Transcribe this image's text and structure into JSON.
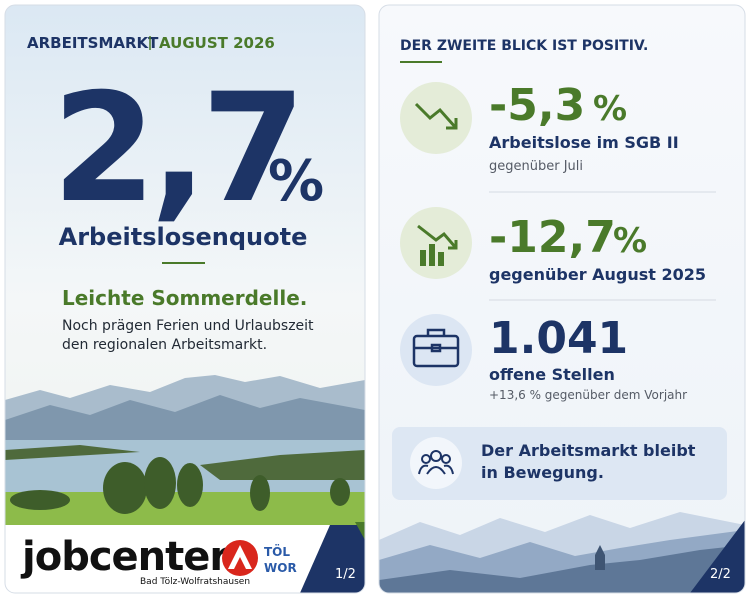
{
  "left": {
    "header": {
      "topic": "ARBEITSMARKT",
      "month": "AUGUST 2026"
    },
    "rate": {
      "value": "2,7",
      "unit": "%"
    },
    "rate_label": "Arbeitslosenquote",
    "headline": "Leichte Sommerdelle.",
    "body": [
      "Noch prägen Ferien und Urlaubszeit",
      "den regionalen Arbeitsmarkt."
    ],
    "logo": {
      "name": "jobcenter",
      "region": "Bad Tölz-Wolfratshausen",
      "badge": [
        "TÖL",
        "WOR"
      ]
    },
    "page_number": "1/2"
  },
  "right": {
    "title": "DER ZWEITE BLICK IST POSITIV.",
    "stats": [
      {
        "value": "-5,3",
        "unit": "%",
        "label": "Arbeitslose im SGB II",
        "note": "gegenüber Juli"
      },
      {
        "value": "-12,7",
        "unit": "%",
        "label": "gegenüber August 2025"
      },
      {
        "value": "1.041",
        "label": "offene Stellen",
        "note": "+13,6 % gegenüber dem Vorjahr"
      }
    ],
    "banner": [
      "Der Arbeitsmarkt bleibt",
      "in Bewegung."
    ],
    "page_number": "2/2"
  }
}
